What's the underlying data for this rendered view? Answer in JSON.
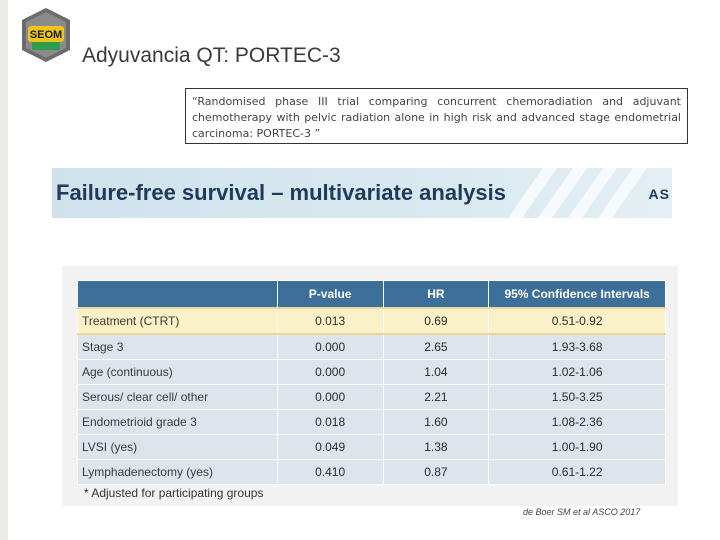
{
  "slide": {
    "title": "Adyuvancia QT: PORTEC-3",
    "quote": "“Randomised phase III trial comparing concurrent chemoradiation and adjuvant chemotherapy with pelvic radiation alone in high risk and advanced stage endometrial carcinoma: PORTEC-3 ”",
    "citation": "de Boer SM et al ASCO 2017"
  },
  "logo": {
    "text": "SEOM"
  },
  "banner": {
    "title": "Failure-free survival – multivariate analysis",
    "mark": "AS"
  },
  "table": {
    "headers": [
      "",
      "P-value",
      "HR",
      "95% Confidence Intervals"
    ],
    "rows": [
      {
        "label": "Treatment (CTRT)",
        "p": "0.013",
        "hr": "0.69",
        "ci": "0.51-0.92"
      },
      {
        "label": "Stage 3",
        "p": "0.000",
        "hr": "2.65",
        "ci": "1.93-3.68"
      },
      {
        "label": "Age (continuous)",
        "p": "0.000",
        "hr": "1.04",
        "ci": "1.02-1.06"
      },
      {
        "label": "Serous/ clear cell/ other",
        "p": "0.000",
        "hr": "2.21",
        "ci": "1.50-3.25"
      },
      {
        "label": "Endometrioid grade 3",
        "p": "0.018",
        "hr": "1.60",
        "ci": "1.08-2.36"
      },
      {
        "label": "LVSI (yes)",
        "p": "0.049",
        "hr": "1.38",
        "ci": "1.00-1.90"
      },
      {
        "label": "Lymphadenectomy (yes)",
        "p": "0.410",
        "hr": "0.87",
        "ci": "0.61-1.22"
      }
    ],
    "footnote": "* Adjusted for participating groups"
  },
  "colors": {
    "header": "#3c6f99",
    "highlight": "#fbf1c7",
    "banner_text": "#1f3a5a"
  }
}
